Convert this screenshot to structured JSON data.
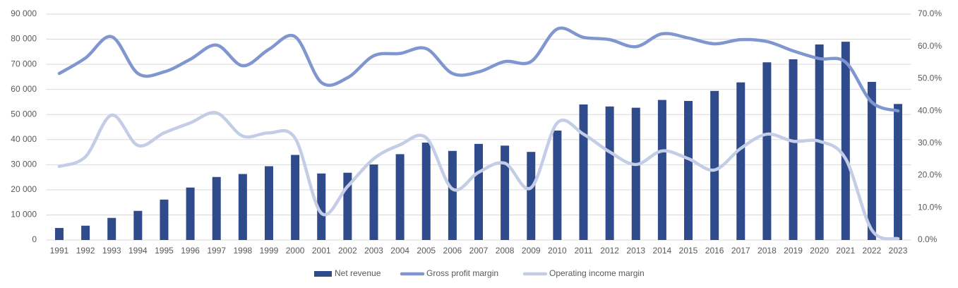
{
  "chart_data": {
    "type": "bar",
    "categories": [
      "1991",
      "1992",
      "1993",
      "1994",
      "1995",
      "1996",
      "1997",
      "1998",
      "1999",
      "2000",
      "2001",
      "2002",
      "2003",
      "2004",
      "2005",
      "2006",
      "2007",
      "2008",
      "2009",
      "2010",
      "2011",
      "2012",
      "2013",
      "2014",
      "2015",
      "2016",
      "2017",
      "2018",
      "2019",
      "2020",
      "2021",
      "2022",
      "2023"
    ],
    "series": [
      {
        "name": "Net revenue",
        "type": "bar",
        "color": "#2f4b8c",
        "values": [
          4800,
          5700,
          8800,
          11600,
          16100,
          20900,
          25100,
          26300,
          29400,
          33900,
          26500,
          26800,
          30100,
          34200,
          38800,
          35500,
          38300,
          37600,
          35100,
          43600,
          54000,
          53200,
          52700,
          55800,
          55400,
          59400,
          62800,
          70800,
          72000,
          77900,
          79000,
          63000,
          54200
        ]
      },
      {
        "name": "Gross profit margin",
        "type": "line",
        "axis": "y2",
        "color": "#7f96cf",
        "values": [
          51.6,
          56.4,
          63.0,
          51.6,
          52.1,
          56.0,
          60.4,
          54.0,
          59.1,
          63.0,
          48.8,
          50.3,
          57.1,
          57.8,
          59.3,
          51.6,
          52.1,
          55.3,
          55.3,
          65.4,
          62.8,
          62.1,
          59.9,
          63.9,
          62.6,
          60.8,
          62.1,
          61.5,
          58.6,
          56.2,
          55.1,
          42.7,
          40.0
        ]
      },
      {
        "name": "Operating income margin",
        "type": "line",
        "axis": "y2",
        "color": "#c4cde6",
        "values": [
          22.8,
          25.8,
          38.7,
          29.3,
          33.2,
          36.3,
          39.4,
          32.2,
          33.2,
          31.5,
          8.3,
          16.6,
          25.2,
          29.5,
          31.7,
          15.8,
          21.0,
          23.8,
          16.2,
          36.3,
          32.8,
          27.3,
          23.4,
          27.6,
          25.2,
          21.7,
          28.4,
          32.8,
          30.6,
          30.6,
          25.2,
          3.1,
          0.4
        ]
      }
    ],
    "ylim": [
      0,
      90000
    ],
    "yticks": [
      0,
      {
        "value": 10000,
        "label": "10 000"
      },
      {
        "value": 20000,
        "label": "20 000"
      },
      {
        "value": 30000,
        "label": "30 000"
      },
      {
        "value": 40000,
        "label": "40 000"
      },
      {
        "value": 50000,
        "label": "50 000"
      },
      {
        "value": 60000,
        "label": "60 000"
      },
      {
        "value": 70000,
        "label": "70 000"
      },
      {
        "value": 80000,
        "label": "80 000"
      },
      {
        "value": 90000,
        "label": "90 000"
      }
    ],
    "y2lim": [
      0,
      70
    ],
    "y2ticks": [
      {
        "value": 0,
        "label": "0.0%"
      },
      {
        "value": 10,
        "label": "10.0%"
      },
      {
        "value": 20,
        "label": "20.0%"
      },
      {
        "value": 30,
        "label": "30.0%"
      },
      {
        "value": 40,
        "label": "40.0%"
      },
      {
        "value": 50,
        "label": "50.0%"
      },
      {
        "value": 60,
        "label": "60.0%"
      },
      {
        "value": 70,
        "label": "70.0%"
      }
    ],
    "grid": true,
    "legend": "bottom"
  }
}
